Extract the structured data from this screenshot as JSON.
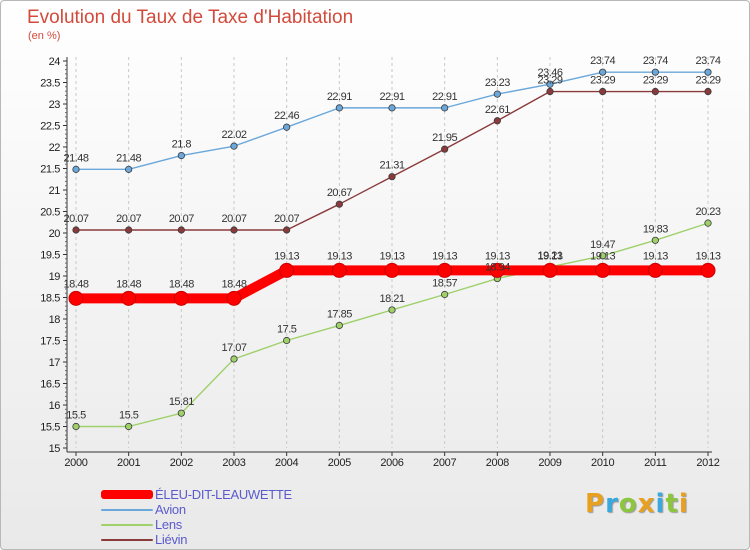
{
  "title": "Evolution du Taux de Taxe d'Habitation",
  "unit": "(en %)",
  "logo": {
    "letters": [
      "P",
      "r",
      "o",
      "x",
      "i",
      "t",
      "i"
    ],
    "colors": [
      "#e8a020",
      "#3aa7dd",
      "#8cc63f",
      "#e8a020",
      "#3aa7dd",
      "#8cc63f",
      "#e8a020"
    ]
  },
  "chart_data": {
    "type": "line",
    "title": "Evolution du Taux de Taxe d'Habitation",
    "ylabel": "(en %)",
    "xlabel": "",
    "x": [
      "2000",
      "2001",
      "2002",
      "2003",
      "2004",
      "2005",
      "2006",
      "2007",
      "2008",
      "2009",
      "2010",
      "2011",
      "2012"
    ],
    "ylim": [
      15,
      24
    ],
    "yticks": [
      "15",
      "15.5",
      "16",
      "16.5",
      "17",
      "17.5",
      "18",
      "18.5",
      "19",
      "19.5",
      "20",
      "20.5",
      "21",
      "21.5",
      "22",
      "22.5",
      "23",
      "23.5",
      "24"
    ],
    "grid": "vertical",
    "legend_position": "bottom-left",
    "series": [
      {
        "name": "ÉLEU-DIT-LEAUWETTE",
        "color": "#ff0000",
        "labels": [
          "18.48",
          "18.48",
          "18.48",
          "18.48",
          "19.13",
          "19.13",
          "19.13",
          "19.13",
          "19.13",
          "19.13",
          "19.13",
          "19.13",
          "19.13"
        ],
        "values": [
          18.48,
          18.48,
          18.48,
          18.48,
          19.13,
          19.13,
          19.13,
          19.13,
          19.13,
          19.13,
          19.13,
          19.13,
          19.13
        ]
      },
      {
        "name": "Avion",
        "color": "#6aa7da",
        "labels": [
          "21.48",
          "21.48",
          "21.8",
          "22.02",
          "22.46",
          "22.91",
          "22.91",
          "22.91",
          "23.23",
          "23.46",
          "23.74",
          "23.74",
          "23.74"
        ],
        "values": [
          21.48,
          21.48,
          21.8,
          22.02,
          22.46,
          22.91,
          22.91,
          22.91,
          23.23,
          23.46,
          23.74,
          23.74,
          23.74
        ]
      },
      {
        "name": "Lens",
        "color": "#9fd06a",
        "labels": [
          "15.5",
          "15.5",
          "15.81",
          "17.07",
          "17.5",
          "17.85",
          "18.21",
          "18.57",
          "18.94",
          "19.21",
          "19.47",
          "19.83",
          "20.23"
        ],
        "values": [
          15.5,
          15.5,
          15.81,
          17.07,
          17.5,
          17.85,
          18.21,
          18.57,
          18.94,
          19.21,
          19.47,
          19.83,
          20.23
        ]
      },
      {
        "name": "Liévin",
        "color": "#8a3a3a",
        "labels": [
          "20.07",
          "20.07",
          "20.07",
          "20.07",
          "20.07",
          "20.67",
          "21.31",
          "21.95",
          "22.61",
          "23.29",
          "23.29",
          "23.29",
          "23.29"
        ],
        "values": [
          20.07,
          20.07,
          20.07,
          20.07,
          20.07,
          20.67,
          21.31,
          21.95,
          22.61,
          23.29,
          23.29,
          23.29,
          23.29
        ]
      }
    ]
  }
}
